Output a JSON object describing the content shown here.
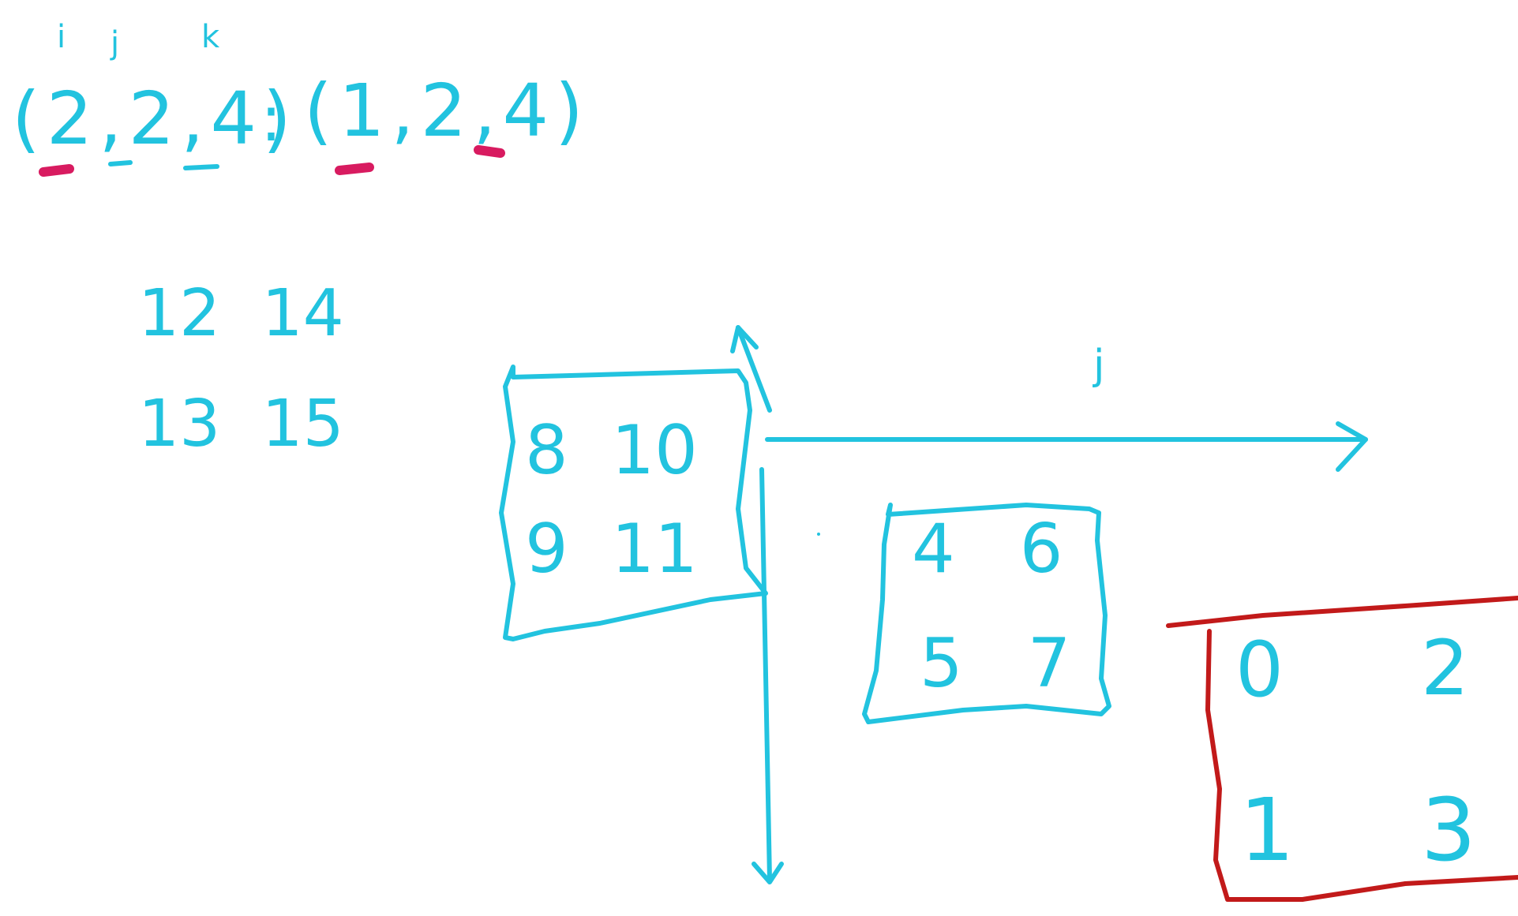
{
  "index_labels": {
    "i": "i",
    "j": "j",
    "k": "k"
  },
  "equation": {
    "shape": "(2,2,4)",
    "separator": ":",
    "strides": "(1,2,4)"
  },
  "blocks": {
    "top_left": {
      "r1": "12  14",
      "r2": "13  15"
    },
    "middle": {
      "r1": "8  10",
      "r2": "9  11"
    },
    "right": {
      "r1": "4   6",
      "r2": "5   7"
    },
    "red": {
      "r1": "0",
      "r1b": "2",
      "r2": "1",
      "r2b": "3"
    }
  },
  "axis_label_j": "j",
  "colors": {
    "cyan": "#22c3df",
    "red": "#c21a1a",
    "pink": "#d81b60",
    "background": "#ffffff"
  }
}
